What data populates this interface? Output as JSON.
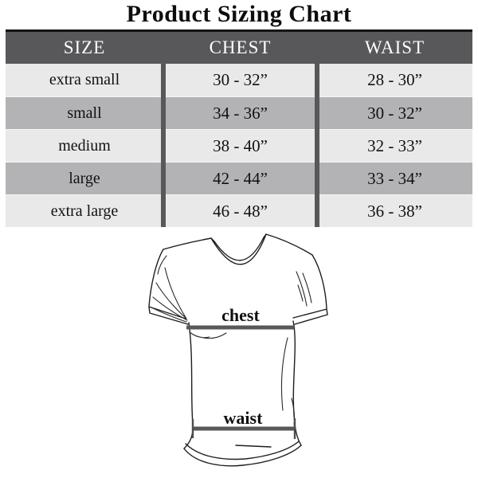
{
  "title": "Product Sizing Chart",
  "table": {
    "columns": [
      "SIZE",
      "CHEST",
      "WAIST"
    ],
    "rows": [
      {
        "size": "extra small",
        "chest": "30 - 32”",
        "waist": "28 - 30”"
      },
      {
        "size": "small",
        "chest": "34 - 36”",
        "waist": "30 - 32”"
      },
      {
        "size": "medium",
        "chest": "38 - 40”",
        "waist": "32 - 33”"
      },
      {
        "size": "large",
        "chest": "42 - 44”",
        "waist": "33 - 34”"
      },
      {
        "size": "extra large",
        "chest": "46 - 48”",
        "waist": "36 - 38”"
      }
    ]
  },
  "diagram": {
    "chest_label": "chest",
    "waist_label": "waist"
  },
  "colors": {
    "header_bg": "#58585a",
    "header_text": "#ffffff",
    "row_light": "#e9e9e9",
    "row_dark": "#b3b3b5",
    "column_divider": "#58585a",
    "top_border": "#151515",
    "measure_line": "#58585a",
    "shirt_outline": "#1e1e1e"
  },
  "chart_data": {
    "type": "table",
    "title": "Product Sizing Chart",
    "columns": [
      "SIZE",
      "CHEST",
      "WAIST"
    ],
    "rows": [
      [
        "extra small",
        "30 - 32”",
        "28 - 30”"
      ],
      [
        "small",
        "34 - 36”",
        "30 - 32”"
      ],
      [
        "medium",
        "38 - 40”",
        "32 - 33”"
      ],
      [
        "large",
        "42 - 44”",
        "33 - 34”"
      ],
      [
        "extra large",
        "46 - 48”",
        "36 - 38”"
      ]
    ]
  }
}
